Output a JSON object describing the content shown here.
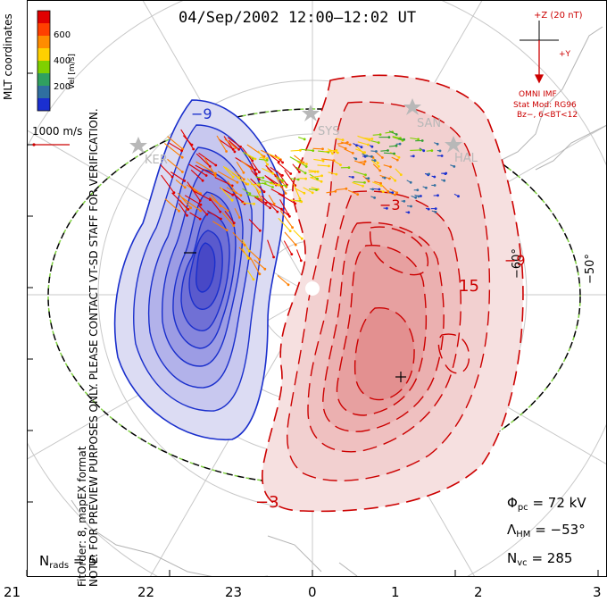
{
  "title": "04/Sep/2002 12:00–12:02 UT",
  "side_text": {
    "coords": "MLT coordinates",
    "preview": "NOTE: FOR PREVIEW PURPOSES ONLY. PLEASE CONTACT VT-SD STAFF FOR VERIFICATION.",
    "fit": "FitOrder: 8, mapEX format"
  },
  "colorbar": {
    "label": "Vel [m/s]",
    "ticks": [
      "600",
      "400",
      "200"
    ],
    "colors": [
      "#e00000",
      "#ff7f00",
      "#ffd000",
      "#7fd000",
      "#30a030",
      "#2f6fa0",
      "#1a2fd0"
    ]
  },
  "vector_scale": "1000 m/s",
  "imf": {
    "z_label": "+Z (20 nT)",
    "y_label": "+Y",
    "source": "OMNI IMF",
    "model": "Stat Mod: RG96",
    "condition": "Bz−, 6<BT<12"
  },
  "stations": [
    "KER",
    "SYS",
    "SAN",
    "HAL"
  ],
  "lat_labels": [
    "−60°",
    "−50°"
  ],
  "contour_labels": [
    "−9",
    "−3",
    "15",
    "−3",
    "−9"
  ],
  "stats": {
    "phi_label": "Φ",
    "phi_sub": "pc",
    "phi_value": "= 72 kV",
    "lambda_label": "Λ",
    "lambda_sub": "HM",
    "lambda_value": "= −53°",
    "nvc_label": "N",
    "nvc_sub": "vc",
    "nvc_value": "= 285",
    "nrads_label": "N",
    "nrads_sub": "rads",
    "nrads_value": "= 5"
  },
  "mlt_ticks": [
    "21",
    "22",
    "23",
    "0",
    "1",
    "2",
    "3"
  ]
}
